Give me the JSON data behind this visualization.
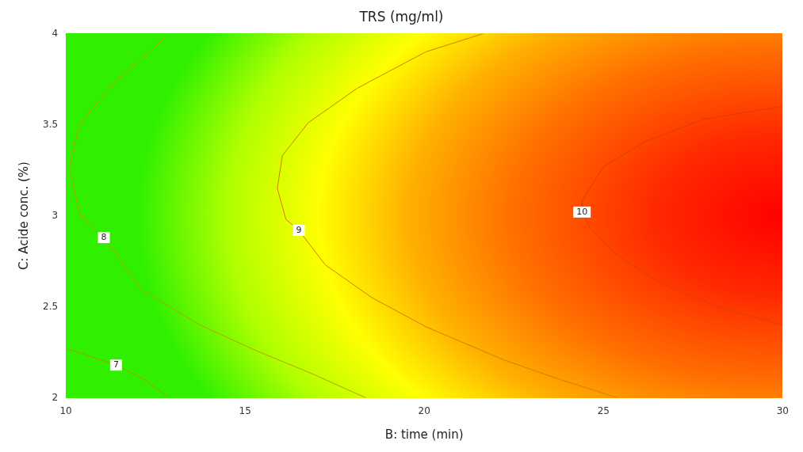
{
  "chart_data": {
    "type": "line",
    "title": "TRS (mg/ml)",
    "xlabel": "B: time (min)",
    "ylabel": "C: Acide conc. (%)",
    "xlim": [
      10,
      30
    ],
    "xticks": [
      10,
      15,
      20,
      25,
      30
    ],
    "ylim": [
      2,
      4
    ],
    "yticks": [
      2,
      2.5,
      3,
      3.5,
      4
    ],
    "series": [
      {
        "color": "#a89a00",
        "x": [
          10,
          10.5,
          11.4,
          12.2,
          12.9
        ],
        "values": [
          2.27,
          2.24,
          2.18,
          2.1,
          2
        ]
      },
      {
        "color": "#b8a000",
        "x": [
          12.9,
          11.34,
          10.38,
          10.1,
          10.38,
          11.06,
          12.13,
          13.74,
          15.3,
          16.9,
          18.37
        ],
        "values": [
          4,
          3.73,
          3.5,
          3.27,
          3.01,
          2.88,
          2.59,
          2.4,
          2.26,
          2.13,
          2
        ]
      },
      {
        "color": "#d08000",
        "x": [
          21.65,
          20.05,
          18.13,
          16.76,
          16.04,
          15.9,
          16.14,
          16.5,
          17.24,
          18.54,
          20.05,
          22.2,
          23.8,
          25.4
        ],
        "values": [
          4,
          3.9,
          3.7,
          3.51,
          3.33,
          3.15,
          2.98,
          2.92,
          2.73,
          2.55,
          2.39,
          2.21,
          2.1,
          2
        ]
      },
      {
        "color": "#d84000",
        "x": [
          30,
          27.8,
          26.2,
          25,
          24.4,
          24.4,
          24.6,
          25.4,
          26.6,
          28.2,
          30
        ],
        "values": [
          3.6,
          3.53,
          3.41,
          3.27,
          3.08,
          3.02,
          2.94,
          2.78,
          2.63,
          2.5,
          2.4
        ]
      }
    ],
    "annotations": [
      {
        "text": "7",
        "x": 11.4,
        "y": 2.18
      },
      {
        "text": "8",
        "x": 11.06,
        "y": 2.88
      },
      {
        "text": "9",
        "x": 16.5,
        "y": 2.92
      },
      {
        "text": "10",
        "x": 24.4,
        "y": 3.02
      }
    ]
  }
}
